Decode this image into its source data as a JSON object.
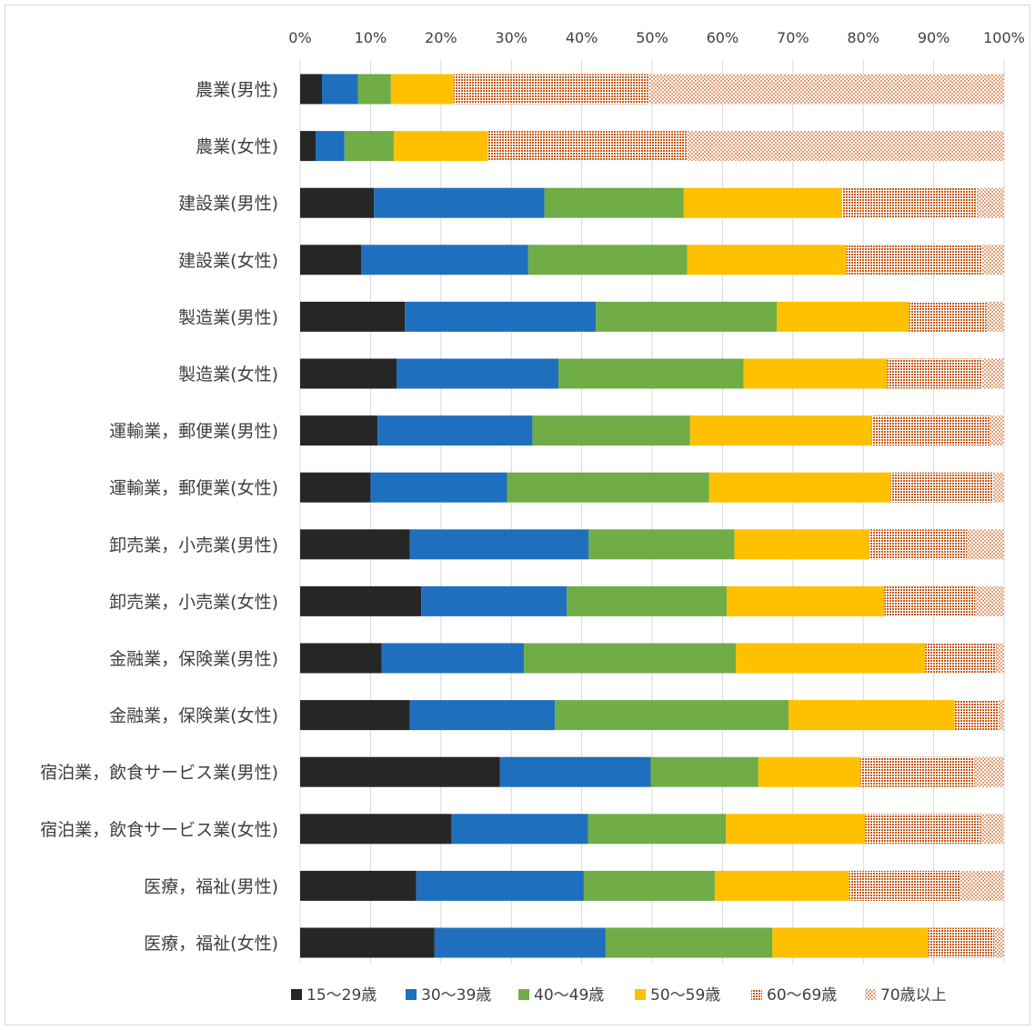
{
  "chart_data": {
    "type": "bar",
    "orientation": "horizontal",
    "stacked": "percent",
    "title": "",
    "xlabel": "",
    "ylabel": "",
    "xlim": [
      0,
      100
    ],
    "x_ticks": [
      "0%",
      "10%",
      "20%",
      "30%",
      "40%",
      "50%",
      "60%",
      "70%",
      "80%",
      "90%",
      "100%"
    ],
    "grid": true,
    "legend_position": "bottom",
    "categories": [
      "農業(男性)",
      "農業(女性)",
      "建設業(男性)",
      "建設業(女性)",
      "製造業(男性)",
      "製造業(女性)",
      "運輸業，郵便業(男性)",
      "運輸業，郵便業(女性)",
      "卸売業，小売業(男性)",
      "卸売業，小売業(女性)",
      "金融業，保険業(男性)",
      "金融業，保険業(女性)",
      "宿泊業，飲食サービス業(男性)",
      "宿泊業，飲食サービス業(女性)",
      "医療，福祉(男性)",
      "医療，福祉(女性)"
    ],
    "series": [
      {
        "name": "15〜29歳",
        "color": "#262626",
        "pattern": "solid",
        "values": [
          3.1,
          2.2,
          10.5,
          8.7,
          14.9,
          13.7,
          11.0,
          10.0,
          15.6,
          17.2,
          11.6,
          15.6,
          28.4,
          21.5,
          16.5,
          19.1
        ]
      },
      {
        "name": "30〜39歳",
        "color": "#1f6fbf",
        "pattern": "solid",
        "values": [
          5.1,
          4.1,
          24.2,
          23.7,
          27.1,
          23.0,
          22.0,
          19.4,
          25.4,
          20.7,
          20.2,
          20.6,
          21.4,
          19.4,
          23.8,
          24.3
        ]
      },
      {
        "name": "40〜49歳",
        "color": "#70ad47",
        "pattern": "solid",
        "values": [
          4.7,
          7.0,
          19.8,
          22.6,
          25.7,
          26.3,
          22.4,
          28.7,
          20.7,
          22.7,
          30.1,
          33.2,
          15.3,
          19.6,
          18.6,
          23.7
        ]
      },
      {
        "name": "50〜59歳",
        "color": "#ffc000",
        "pattern": "solid",
        "values": [
          8.9,
          13.4,
          22.5,
          22.6,
          18.8,
          20.4,
          25.8,
          25.8,
          19.1,
          22.4,
          26.9,
          23.6,
          14.5,
          19.8,
          19.1,
          22.1
        ]
      },
      {
        "name": "60〜69歳",
        "color": "#c55a11",
        "pattern": "dense-check",
        "values": [
          27.8,
          28.3,
          19.2,
          19.3,
          11.0,
          13.5,
          16.7,
          14.6,
          13.9,
          12.9,
          10.1,
          6.3,
          16.2,
          16.4,
          15.7,
          9.4
        ]
      },
      {
        "name": "70歳以上",
        "color": "#c55a11",
        "pattern": "sparse-check",
        "values": [
          50.4,
          45.0,
          3.8,
          3.1,
          2.5,
          3.1,
          2.1,
          1.5,
          5.3,
          4.1,
          1.1,
          0.7,
          4.2,
          3.2,
          6.3,
          1.4
        ]
      }
    ]
  }
}
